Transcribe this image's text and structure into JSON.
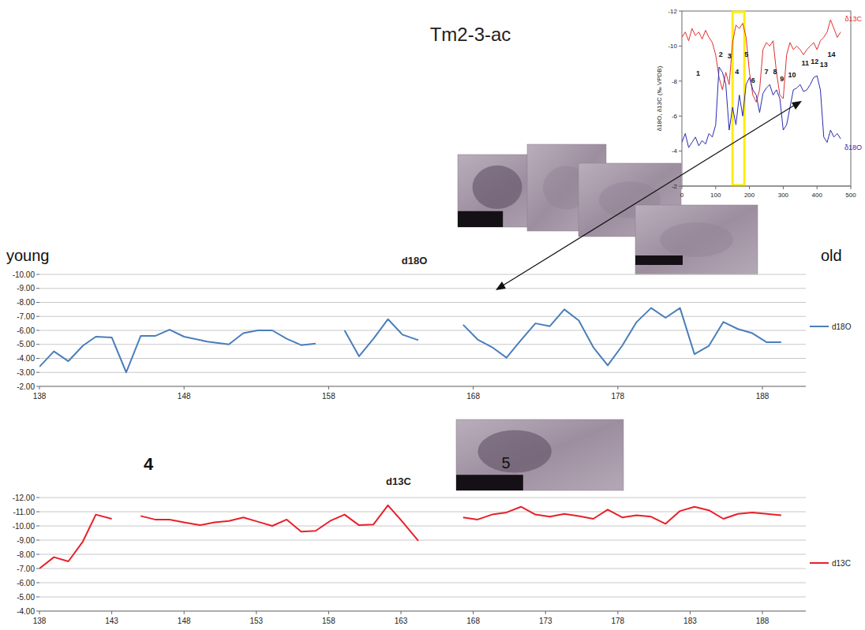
{
  "title": "Tm2-3-ac",
  "chart_data": [
    {
      "type": "line",
      "title": "d18O",
      "x": [
        138,
        139,
        140,
        141,
        141.9,
        143,
        144,
        145,
        146,
        147,
        148,
        149.6,
        151.1,
        152.1,
        153.1,
        154.1,
        155.1,
        156.1,
        157.1,
        158.1,
        159.1,
        160.1,
        161.1,
        162.1,
        163.1,
        164.2,
        165.7,
        167.3,
        168.3,
        169.3,
        170.3,
        171.3,
        172.3,
        173.3,
        174.3,
        175.3,
        176.3,
        177.3,
        178.3,
        179.3,
        180.3,
        181.3,
        182.3,
        183.3,
        184.3,
        185.3,
        186.3,
        187.3,
        188.3,
        189.3
      ],
      "series": [
        {
          "name": "d18O",
          "color": "#4a7ebb",
          "values": [
            -3.4,
            -4.5,
            -3.8,
            -4.9,
            -5.55,
            -5.5,
            -3.0,
            -5.6,
            -5.6,
            -6.05,
            -5.55,
            -5.2,
            -5.0,
            -5.8,
            -6.0,
            -6.0,
            -5.4,
            -4.95,
            -5.05,
            null,
            -6.0,
            -4.15,
            -5.4,
            -6.8,
            -5.7,
            -5.3,
            null,
            -6.4,
            -5.35,
            -4.8,
            -4.05,
            -5.3,
            -6.5,
            -6.3,
            -7.5,
            -6.7,
            -4.8,
            -3.5,
            -4.9,
            -6.6,
            -7.6,
            -6.9,
            -7.6,
            -4.3,
            -4.9,
            -6.6,
            -6.1,
            -5.8,
            -5.15,
            -5.15
          ]
        }
      ],
      "xlim": [
        138,
        191
      ],
      "xticks": [
        138,
        148,
        158,
        168,
        178,
        188
      ],
      "ylim": [
        -2,
        -10
      ],
      "yticks": [
        {
          "value": -10,
          "label": "-10.00"
        },
        {
          "value": -9,
          "label": "-9.00"
        },
        {
          "value": -8,
          "label": "-8.00"
        },
        {
          "value": -7,
          "label": "-7.00"
        },
        {
          "value": -6,
          "label": "-6.00"
        },
        {
          "value": -5,
          "label": "-5.00"
        },
        {
          "value": -4,
          "label": "-4.00"
        },
        {
          "value": -3,
          "label": "-3.00"
        },
        {
          "value": -2,
          "label": "-2.00"
        }
      ],
      "grid": true,
      "legend": "right",
      "annotations": [
        {
          "text": "young"
        },
        {
          "text": "old"
        }
      ]
    },
    {
      "type": "line",
      "title": "d13C",
      "x": [
        138,
        139,
        140,
        141,
        141.9,
        143,
        144,
        145,
        146,
        147,
        148,
        149.1,
        150.1,
        151.1,
        152.1,
        153.1,
        154.1,
        155.1,
        156.1,
        157.1,
        158.1,
        159.1,
        160.1,
        161.1,
        162.1,
        163.1,
        164.2,
        165.7,
        167.3,
        168.3,
        169.3,
        170.3,
        171.3,
        172.3,
        173.3,
        174.3,
        175.3,
        176.3,
        177.3,
        178.3,
        179.3,
        180.3,
        181.3,
        182.3,
        183.3,
        184.3,
        185.3,
        186.3,
        187.3,
        188.3,
        189.3
      ],
      "series": [
        {
          "name": "d13C",
          "color": "#e8202a",
          "values": [
            -7.0,
            -7.8,
            -7.5,
            -8.9,
            -10.8,
            -10.5,
            null,
            -10.7,
            -10.45,
            -10.45,
            -10.25,
            -10.05,
            -10.25,
            -10.35,
            -10.6,
            -10.3,
            -10.0,
            -10.45,
            -9.6,
            -9.65,
            -10.35,
            -10.8,
            -10.05,
            -10.1,
            -11.45,
            -10.3,
            -8.95,
            null,
            -10.6,
            -10.45,
            -10.8,
            -10.95,
            -11.35,
            -10.8,
            -10.65,
            -10.85,
            -10.7,
            -10.5,
            -11.15,
            -10.6,
            -10.75,
            -10.65,
            -10.15,
            -11.05,
            -11.35,
            -11.1,
            -10.5,
            -10.85,
            -10.95,
            -10.85,
            -10.75
          ]
        }
      ],
      "xlim": [
        138,
        191
      ],
      "xticks": [
        138,
        143,
        148,
        153,
        158,
        163,
        168,
        173,
        178,
        183,
        188
      ],
      "ylim": [
        -4,
        -12
      ],
      "yticks": [
        {
          "value": -12,
          "label": "-12.00"
        },
        {
          "value": -11,
          "label": "-11.00"
        },
        {
          "value": -10,
          "label": "-10.00"
        },
        {
          "value": -9,
          "label": "-9.00"
        },
        {
          "value": -8,
          "label": "-8.00"
        },
        {
          "value": -7,
          "label": "-7.00"
        },
        {
          "value": -6,
          "label": "-6.00"
        },
        {
          "value": -5,
          "label": "-5.00"
        },
        {
          "value": -4,
          "label": "-4.00"
        }
      ],
      "grid": true,
      "legend": "right",
      "annotations": [
        {
          "text": "4"
        },
        {
          "text": "5"
        }
      ]
    },
    {
      "type": "line",
      "y_label": "δ18O, δ13C (‰ VPDB)",
      "x": [
        0,
        10,
        20,
        30,
        40,
        50,
        60,
        70,
        80,
        90,
        100,
        110,
        120,
        130,
        140,
        150,
        160,
        170,
        180,
        190,
        200,
        210,
        220,
        230,
        240,
        250,
        260,
        270,
        280,
        290,
        300,
        310,
        320,
        330,
        340,
        350,
        360,
        370,
        380,
        390,
        400,
        410,
        420,
        430,
        440,
        450,
        460,
        470
      ],
      "series": [
        {
          "name": "δ13C",
          "color": "#e03030",
          "values": [
            -10.5,
            -10.8,
            -10.3,
            -11,
            -10.6,
            -10.8,
            -10.4,
            -10.9,
            -10.5,
            -10.2,
            -9.5,
            -8.2,
            -7.5,
            -8.5,
            -7.8,
            -10.2,
            -11.2,
            -11,
            -11.3,
            -10.5,
            -8.5,
            -7.2,
            -6.8,
            -7.5,
            -9.8,
            -10.2,
            -10,
            -10.3,
            -8.5,
            -7.2,
            -7,
            -9.5,
            -10.2,
            -9.8,
            -10,
            -9.8,
            -9.5,
            -9.8,
            -10,
            -10.2,
            -9.8,
            -10.3,
            -10.5,
            -10.8,
            -11.5,
            -11,
            -10.5,
            -10.8
          ]
        },
        {
          "name": "δ18O",
          "color": "#2a2ab0",
          "values": [
            -4.5,
            -5,
            -4.2,
            -4.5,
            -4.8,
            -4.3,
            -4.6,
            -4.4,
            -5,
            -4.8,
            -5.5,
            -8.8,
            -8.5,
            -7.8,
            -5.2,
            -6.5,
            -5.5,
            -7.2,
            -6,
            -7.8,
            -8.2,
            -7.5,
            -7.2,
            -6.2,
            -7.3,
            -7.6,
            -7.8,
            -7.2,
            -7.5,
            -7,
            -5.2,
            -5.5,
            -6.5,
            -7.5,
            -7.6,
            -7.8,
            -7.4,
            -7.5,
            -7.8,
            -8.2,
            -8.3,
            -7.5,
            -4.8,
            -4.5,
            -5.2,
            -4.8,
            -5,
            -4.7
          ]
        }
      ],
      "xlim": [
        0,
        500
      ],
      "xticks": [
        0,
        100,
        200,
        300,
        400,
        500
      ],
      "ylim": [
        -2,
        -12
      ],
      "yticks": [
        -12,
        -10,
        -8,
        -6,
        -4,
        -2
      ],
      "legend": "right",
      "highlight": {
        "x": [
          150,
          185
        ]
      },
      "annotations": [
        {
          "text": "1",
          "x": 48,
          "y": -8.3
        },
        {
          "text": "2",
          "x": 115,
          "y": -9.4
        },
        {
          "text": "3",
          "x": 141,
          "y": -9.3
        },
        {
          "text": "4",
          "x": 163,
          "y": -8.4
        },
        {
          "text": "5",
          "x": 191,
          "y": -9.4
        },
        {
          "text": "6",
          "x": 211,
          "y": -7.9
        },
        {
          "text": "7",
          "x": 250,
          "y": -8.4
        },
        {
          "text": "8",
          "x": 276,
          "y": -8.4
        },
        {
          "text": "9",
          "x": 296,
          "y": -8.0
        },
        {
          "text": "10",
          "x": 326,
          "y": -8.2
        },
        {
          "text": "11",
          "x": 365,
          "y": -8.9
        },
        {
          "text": "12",
          "x": 393,
          "y": -9.0
        },
        {
          "text": "13",
          "x": 420,
          "y": -8.8
        },
        {
          "text": "14",
          "x": 443,
          "y": -9.4
        }
      ]
    }
  ]
}
